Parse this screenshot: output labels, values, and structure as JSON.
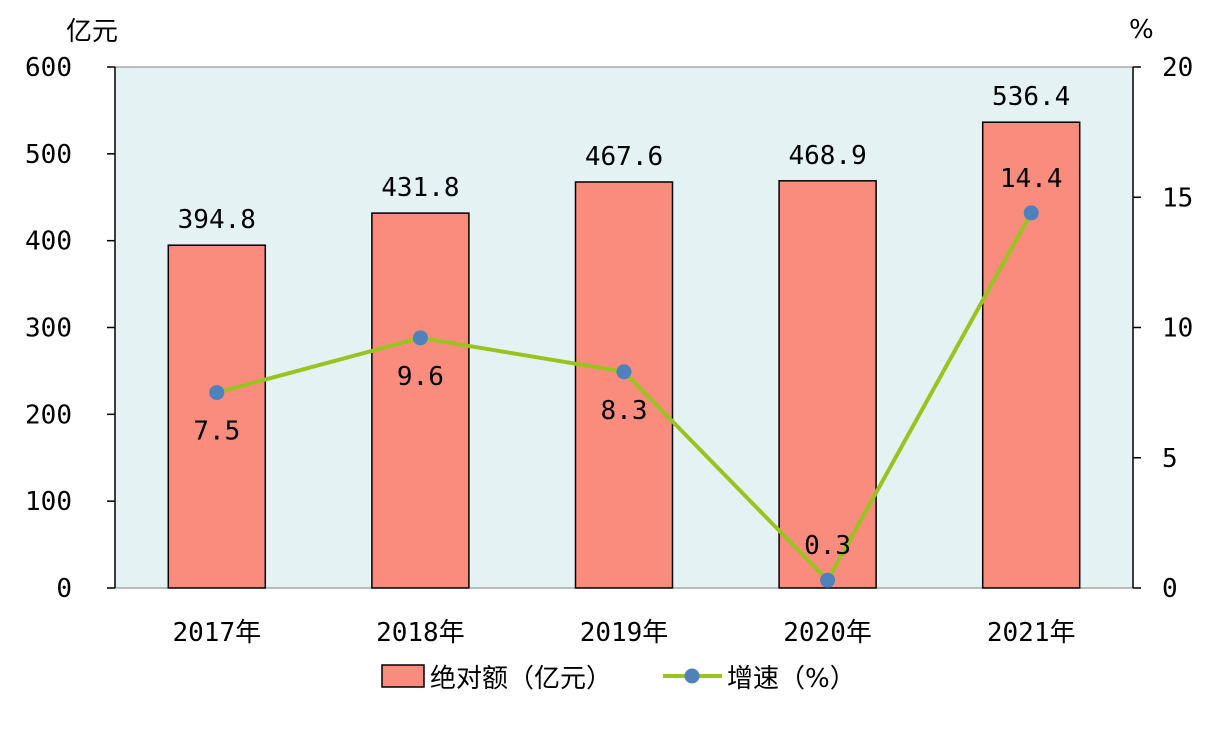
{
  "chart_data": {
    "type": "bar",
    "categories": [
      "2017年",
      "2018年",
      "2019年",
      "2020年",
      "2021年"
    ],
    "series": [
      {
        "name": "绝对额（亿元）",
        "type": "bar",
        "axis": "left",
        "values": [
          394.8,
          431.8,
          467.6,
          468.9,
          536.4
        ],
        "color": "#fa8c7d"
      },
      {
        "name": "增速（%）",
        "type": "line",
        "axis": "right",
        "values": [
          7.5,
          9.6,
          8.3,
          0.3,
          14.4
        ],
        "color": "#99c31e",
        "marker_color": "#4f81bd"
      }
    ],
    "bar_labels": [
      "394.8",
      "431.8",
      "467.6",
      "468.9",
      "536.4"
    ],
    "line_labels": [
      "7.5",
      "9.6",
      "8.3",
      "0.3",
      "14.4"
    ],
    "left_axis": {
      "unit": "亿元",
      "ylim": [
        0,
        600
      ],
      "ticks": [
        "0",
        "100",
        "200",
        "300",
        "400",
        "500",
        "600"
      ]
    },
    "right_axis": {
      "unit": "%",
      "ylim": [
        0,
        20
      ],
      "ticks": [
        "0",
        "5",
        "10",
        "15",
        "20"
      ]
    },
    "plot_background": "#e4f2f4",
    "legend_position": "bottom",
    "grid": false
  }
}
